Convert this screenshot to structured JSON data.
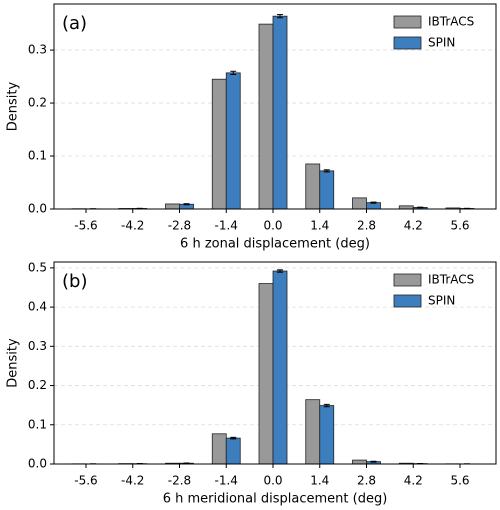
{
  "chart_data": [
    {
      "type": "bar",
      "annotation": "(a)",
      "xlabel": "6 h zonal displacement (deg)",
      "ylabel": "Density",
      "categories": [
        "-5.6",
        "-4.2",
        "-2.8",
        "-1.4",
        "0.0",
        "1.4",
        "2.8",
        "4.2",
        "5.6"
      ],
      "series": [
        {
          "name": "IBTrACS",
          "color": "#999999",
          "values": [
            0.0005,
            0.001,
            0.0095,
            0.245,
            0.349,
            0.085,
            0.021,
            0.006,
            0.002
          ]
        },
        {
          "name": "SPIN",
          "color": "#3d7ebf",
          "values": [
            0.0003,
            0.001,
            0.009,
            0.257,
            0.364,
            0.072,
            0.012,
            0.003,
            0.001
          ],
          "errors": [
            0.0002,
            0.0003,
            0.001,
            0.003,
            0.003,
            0.002,
            0.001,
            0.0005,
            0.0003
          ]
        }
      ],
      "ylim": [
        0,
        0.387
      ],
      "yticks": [
        {
          "value": 0,
          "label": "0.0"
        },
        0.1,
        0.2,
        0.3
      ],
      "grid": true,
      "legend": "upper right"
    },
    {
      "type": "bar",
      "annotation": "(b)",
      "xlabel": "6 h meridional displacement (deg)",
      "ylabel": "Density",
      "categories": [
        "-5.6",
        "-4.2",
        "-2.8",
        "-1.4",
        "0.0",
        "1.4",
        "2.8",
        "4.2",
        "5.6"
      ],
      "series": [
        {
          "name": "IBTrACS",
          "color": "#999999",
          "values": [
            0.0005,
            0.001,
            0.002,
            0.077,
            0.46,
            0.164,
            0.01,
            0.002,
            0.0005
          ]
        },
        {
          "name": "SPIN",
          "color": "#3d7ebf",
          "values": [
            0.0003,
            0.0008,
            0.002,
            0.066,
            0.492,
            0.149,
            0.006,
            0.001,
            0.0003
          ],
          "errors": [
            0.0002,
            0.0003,
            0.0005,
            0.002,
            0.003,
            0.003,
            0.001,
            0.0003,
            0.0002
          ]
        }
      ],
      "ylim": [
        0,
        0.515
      ],
      "yticks": [
        {
          "value": 0,
          "label": "0.0"
        },
        0.1,
        0.2,
        0.3,
        0.4,
        0.5
      ],
      "grid": true,
      "legend": "upper right"
    }
  ]
}
